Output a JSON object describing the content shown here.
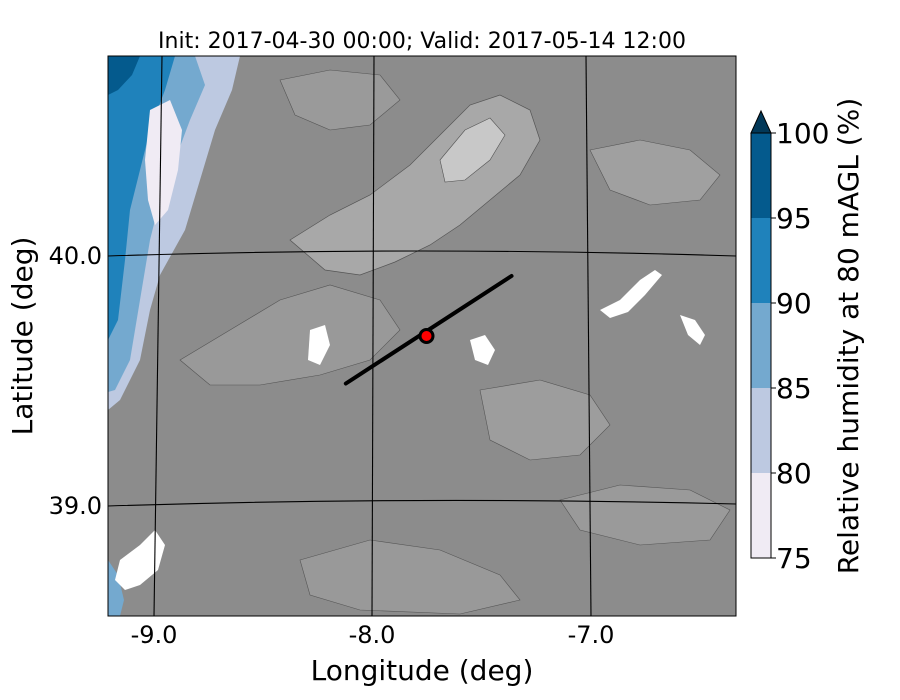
{
  "title": "Init: 2017-04-30 00:00; Valid: 2017-05-14 12:00",
  "xlabel": "Longitude (deg)",
  "ylabel": "Latitude (deg)",
  "x_ticks": [
    "-9.0",
    "-8.0",
    "-7.0"
  ],
  "y_ticks": [
    "40.0",
    "39.0"
  ],
  "colorbar": {
    "label": "Relative humidity at 80 mAGL (%)",
    "ticks": [
      "75",
      "80",
      "85",
      "90",
      "95",
      "100"
    ],
    "levels": [
      75,
      80,
      85,
      90,
      95,
      100
    ],
    "colors": [
      "#f0ebf4",
      "#bdc9e1",
      "#74a9cf",
      "#1f82bb",
      "#045a8d"
    ],
    "extend": "max",
    "extend_color": "#023858"
  },
  "map": {
    "terrain_gray": "#8c8c8c",
    "cross_section_line": {
      "start_lon": -8.12,
      "start_lat": 39.49,
      "end_lon": -7.36,
      "end_lat": 39.92,
      "color": "#000000"
    },
    "site_marker": {
      "lon": -7.75,
      "lat": 39.68,
      "fill": "#ff0000",
      "stroke": "#000000"
    }
  }
}
